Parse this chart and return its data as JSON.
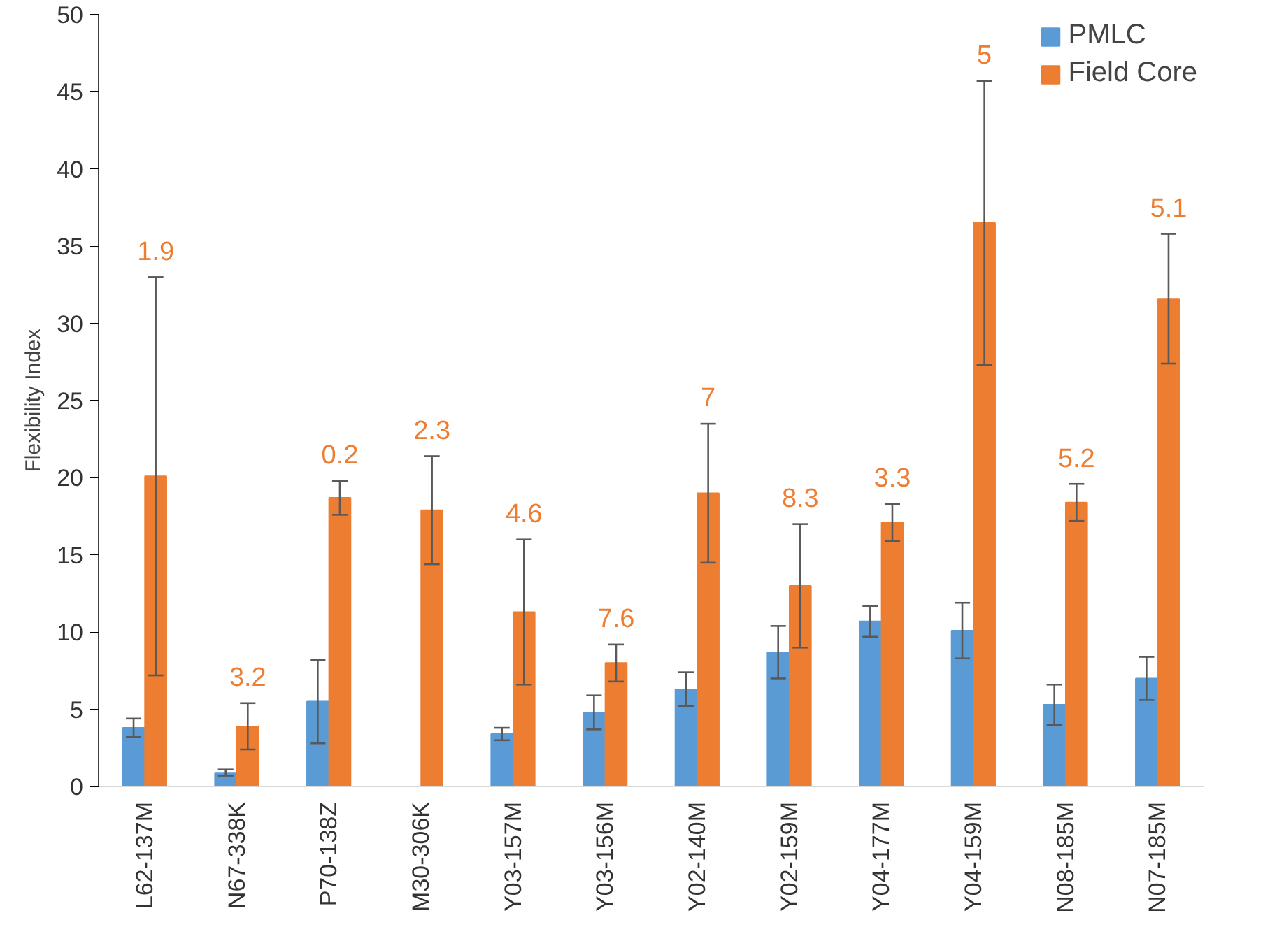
{
  "chart_data": {
    "type": "bar",
    "ylabel": "Flexibility Index",
    "categories": [
      "L62-137M",
      "N67-338K",
      "P70-138Z",
      "M30-306K",
      "Y03-157M",
      "Y03-156M",
      "Y02-140M",
      "Y02-159M",
      "Y04-177M",
      "Y04-159M",
      "N08-185M",
      "N07-185M"
    ],
    "series": [
      {
        "name": "PMLC",
        "color": "#5b9bd5",
        "values": [
          3.8,
          0.9,
          5.5,
          null,
          3.4,
          4.8,
          6.3,
          8.7,
          10.7,
          10.1,
          5.3,
          7.0
        ],
        "errors": [
          0.6,
          0.2,
          2.7,
          null,
          0.4,
          1.1,
          1.1,
          1.7,
          1.0,
          1.8,
          1.3,
          1.4
        ]
      },
      {
        "name": "Field Core",
        "color": "#ed7d31",
        "values": [
          20.1,
          3.9,
          18.7,
          17.9,
          11.3,
          8.0,
          19.0,
          13.0,
          17.1,
          36.5,
          18.4,
          31.6
        ],
        "errors": [
          12.9,
          1.5,
          1.1,
          3.5,
          4.7,
          1.2,
          4.5,
          4.0,
          1.2,
          9.2,
          1.2,
          4.2
        ]
      }
    ],
    "annotations": [
      "1.9",
      "3.2",
      "0.2",
      "2.3",
      "4.6",
      "7.6",
      "7",
      "8.3",
      "3.3",
      "5",
      "5.2",
      "5.1"
    ],
    "ylim": [
      0,
      50
    ],
    "yticks": [
      0,
      5,
      10,
      15,
      20,
      25,
      30,
      35,
      40,
      45,
      50
    ],
    "grid": false,
    "legend": "top right"
  }
}
